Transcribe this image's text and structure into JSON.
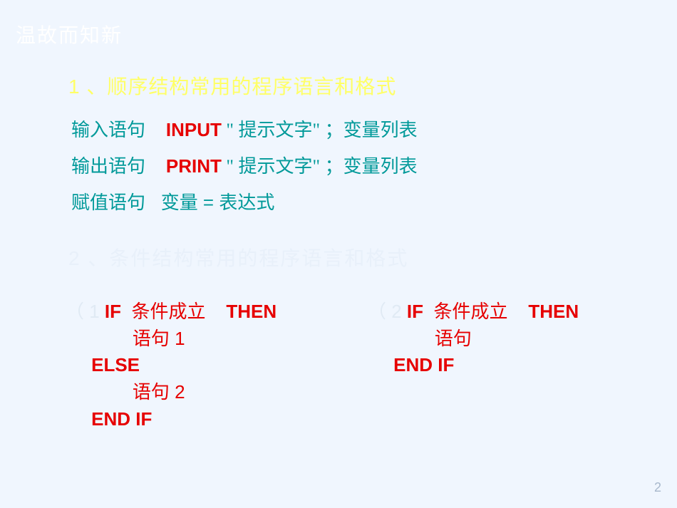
{
  "colors": {
    "background": "#f0f6fe",
    "title_white": "#ffffff",
    "heading_yellow": "#ffff66",
    "heading_faded": "#e8f0fa",
    "teal": "#009999",
    "red": "#e60000",
    "dim": "#e0eaf4",
    "pagenum": "#a8b8cc"
  },
  "typography": {
    "title_fontsize": 28,
    "heading_fontsize": 28,
    "body_fontsize": 26,
    "pagenum_fontsize": 18
  },
  "title": "温故而知新",
  "section1": {
    "heading": "1 、顺序结构常用的程序语言和格式",
    "input_row": {
      "label": "输入语句",
      "keyword": "INPUT",
      "quoted": " \" 提示文字\" ；",
      "tail": "变量列表"
    },
    "print_row": {
      "label": "输出语句",
      "keyword": "PRINT",
      "quoted": " \" 提示文字\" ；",
      "tail": "变量列表"
    },
    "assign_row": {
      "label": " 赋值语句",
      "expr": "变量 = 表达式"
    }
  },
  "section2": {
    "heading": "2 、条件结构常用的程序语言和格式",
    "colA": {
      "l1_lbl": "（ 1 ",
      "l1_if": "IF  ",
      "l1_cond": "条件成立",
      "l1_then": "    THEN",
      "l2": "             语句 1",
      "l3": "     ELSE",
      "l4": "             语句 2",
      "l5": "     END IF"
    },
    "colB": {
      "l1_lbl": "（ 2 ",
      "l1_if": "IF  ",
      "l1_cond": "条件成立",
      "l1_then": "    THEN",
      "l2": "             语句",
      "l3": "     END IF"
    }
  },
  "page_number": "2"
}
